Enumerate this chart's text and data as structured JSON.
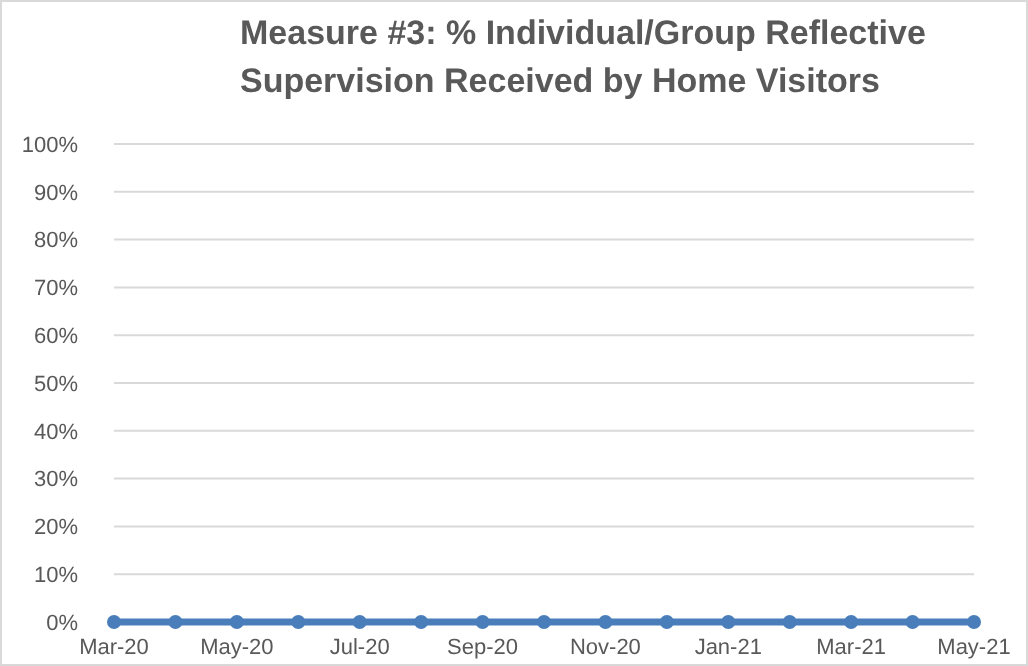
{
  "chart_data": {
    "type": "line",
    "title": "Measure #3: % Individual/Group Reflective Supervision Received by Home Visitors",
    "categories": [
      "Mar-20",
      null,
      "May-20",
      null,
      "Jul-20",
      null,
      "Sep-20",
      null,
      "Nov-20",
      null,
      "Jan-21",
      null,
      "Mar-21",
      null,
      "May-21"
    ],
    "series": [
      {
        "color": "#4a7ebb",
        "values": [
          0,
          0,
          0,
          0,
          0,
          0,
          0,
          0,
          0,
          0,
          0,
          0,
          0,
          0,
          0
        ]
      }
    ],
    "ylim": [
      0,
      100
    ],
    "yticks": [
      {
        "value": 0,
        "label": "0%"
      },
      {
        "value": 10,
        "label": "10%"
      },
      {
        "value": 20,
        "label": "20%"
      },
      {
        "value": 30,
        "label": "30%"
      },
      {
        "value": 40,
        "label": "40%"
      },
      {
        "value": 50,
        "label": "50%"
      },
      {
        "value": 60,
        "label": "60%"
      },
      {
        "value": 70,
        "label": "70%"
      },
      {
        "value": 80,
        "label": "80%"
      },
      {
        "value": 90,
        "label": "90%"
      },
      {
        "value": 100,
        "label": "100%"
      }
    ],
    "grid": "y",
    "marker": "circle",
    "line_style": "solid"
  }
}
